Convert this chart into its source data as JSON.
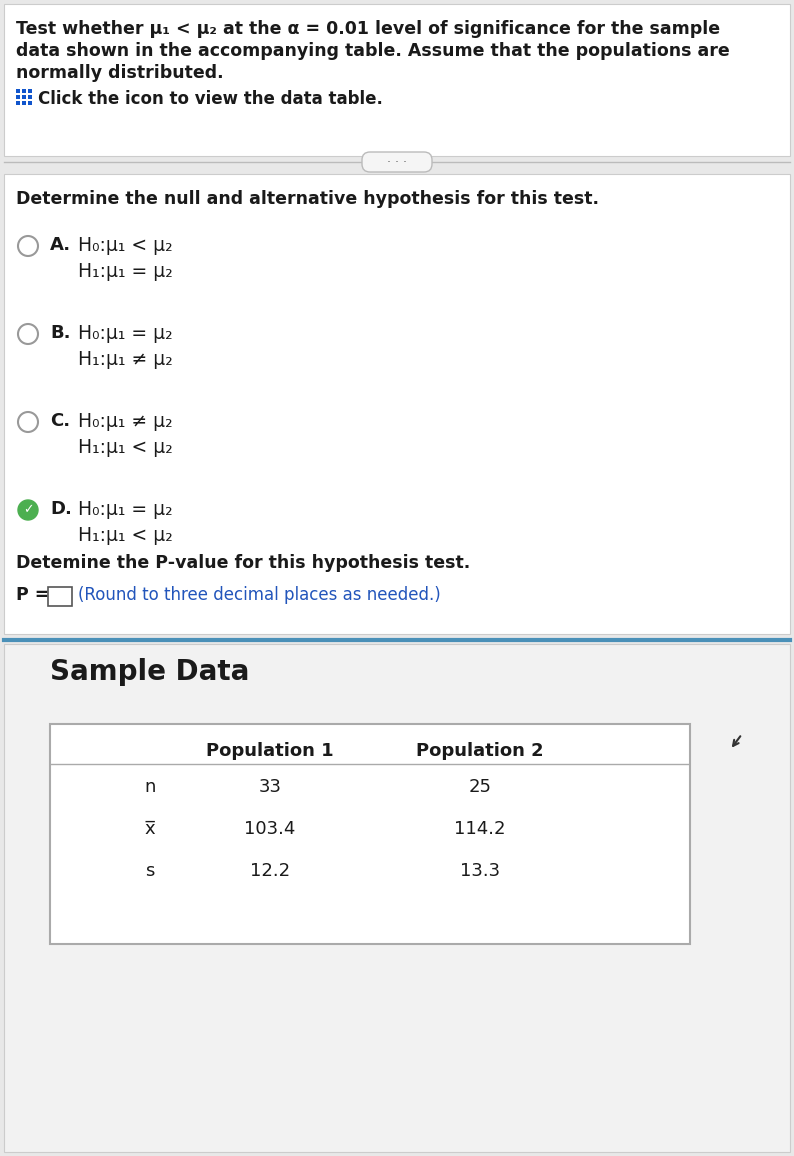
{
  "bg_color": "#e8e8e8",
  "panel_bg": "#ffffff",
  "bottom_bg": "#f2f2f2",
  "title_lines": [
    "Test whether μ₁ < μ₂ at the α = 0.01 level of significance for the sample",
    "data shown in the accompanying table. Assume that the populations are",
    "normally distributed."
  ],
  "click_text": "Click the icon to view the data table.",
  "dots_text": "· · ·",
  "determine_text": "Determine the null and alternative hypothesis for this test.",
  "options": [
    {
      "letter": "A.",
      "line1": "H₀:μ₁ < μ₂",
      "line2": "H₁:μ₁ = μ₂",
      "selected": false
    },
    {
      "letter": "B.",
      "line1": "H₀:μ₁ = μ₂",
      "line2": "H₁:μ₁ ≠ μ₂",
      "selected": false
    },
    {
      "letter": "C.",
      "line1": "H₀:μ₁ ≠ μ₂",
      "line2": "H₁:μ₁ < μ₂",
      "selected": false
    },
    {
      "letter": "D.",
      "line1": "H₀:μ₁ = μ₂",
      "line2": "H₁:μ₁ < μ₂",
      "selected": true
    }
  ],
  "pvalue_label": "Detemine the P-value for this hypothesis test.",
  "pvalue_round_text": "(Round to three decimal places as needed.)",
  "sample_data_title": "Sample Data",
  "table_headers": [
    "Population 1",
    "Population 2"
  ],
  "table_row_labels": [
    "n",
    "x̅",
    "s"
  ],
  "table_pop1": [
    "33",
    "103.4",
    "12.2"
  ],
  "table_pop2": [
    "25",
    "114.2",
    "13.3"
  ],
  "text_color": "#1a1a1a",
  "gray_text": "#555555",
  "blue_link": "#2255bb",
  "check_green": "#4caf50",
  "divider_gray": "#bbbbbb",
  "teal_line": "#4a90b8",
  "table_border": "#aaaaaa",
  "icon_blue": "#1155cc"
}
